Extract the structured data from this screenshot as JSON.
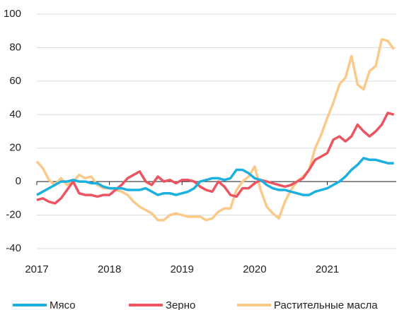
{
  "chart_data": {
    "type": "line",
    "x": [
      2017,
      2017.083,
      2017.167,
      2017.25,
      2017.333,
      2017.417,
      2017.5,
      2017.583,
      2017.667,
      2017.75,
      2017.833,
      2017.917,
      2018,
      2018.083,
      2018.167,
      2018.25,
      2018.333,
      2018.417,
      2018.5,
      2018.583,
      2018.667,
      2018.75,
      2018.833,
      2018.917,
      2019,
      2019.083,
      2019.167,
      2019.25,
      2019.333,
      2019.417,
      2019.5,
      2019.583,
      2019.667,
      2019.75,
      2019.833,
      2019.917,
      2020,
      2020.083,
      2020.167,
      2020.25,
      2020.333,
      2020.417,
      2020.5,
      2020.583,
      2020.667,
      2020.75,
      2020.833,
      2020.917,
      2021,
      2021.083,
      2021.167,
      2021.25,
      2021.333,
      2021.417,
      2021.5,
      2021.583,
      2021.667,
      2021.75,
      2021.833,
      2021.917
    ],
    "series": [
      {
        "name": "Мясо",
        "color": "#1cb0e0",
        "values": [
          -8,
          -6,
          -4,
          -2,
          0,
          0,
          1,
          0,
          0,
          -1,
          -1,
          -3,
          -4,
          -4,
          -4,
          -5,
          -5,
          -5,
          -4,
          -6,
          -8,
          -7,
          -7,
          -8,
          -7,
          -6,
          -4,
          0,
          1,
          2,
          2,
          1,
          2,
          7,
          7,
          5,
          2,
          1,
          -2,
          -4,
          -5,
          -5,
          -6,
          -7,
          -8,
          -8,
          -6,
          -5,
          -4,
          -2,
          0,
          3,
          7,
          10,
          14,
          13,
          13,
          12,
          11,
          11
        ]
      },
      {
        "name": "Зерно",
        "color": "#ec5462",
        "values": [
          -11,
          -10,
          -12,
          -13,
          -10,
          -5,
          0,
          -7,
          -8,
          -8,
          -9,
          -8,
          -8,
          -5,
          -2,
          2,
          4,
          6,
          0,
          -2,
          3,
          0,
          1,
          -1,
          1,
          1,
          0,
          -3,
          -5,
          -6,
          0,
          -3,
          -8,
          -9,
          -4,
          -4,
          -1,
          1,
          0,
          -1,
          -2,
          -3,
          -2,
          0,
          2,
          7,
          13,
          15,
          17,
          25,
          27,
          24,
          27,
          34,
          30,
          27,
          30,
          34,
          41,
          40
        ]
      },
      {
        "name": "Растительные масла",
        "color": "#fbc98a",
        "values": [
          12,
          8,
          1,
          -2,
          2,
          -2,
          0,
          4,
          2,
          3,
          -2,
          -4,
          -4,
          -5,
          -6,
          -8,
          -12,
          -15,
          -17,
          -19,
          -23,
          -23,
          -20,
          -19,
          -20,
          -21,
          -21,
          -21,
          -23,
          -22,
          -18,
          -16,
          -16,
          -5,
          0,
          3,
          9,
          -5,
          -15,
          -19,
          -22,
          -12,
          -5,
          0,
          3,
          7,
          20,
          28,
          38,
          47,
          58,
          62,
          75,
          58,
          55,
          66,
          69,
          85,
          84,
          79
        ]
      }
    ],
    "xlim": [
      2017,
      2021.95
    ],
    "xticks": [
      2017,
      2018,
      2019,
      2020,
      2021
    ],
    "ylim": [
      -40,
      100
    ],
    "yticks": [
      100,
      80,
      60,
      40,
      20,
      0,
      -20,
      -40
    ],
    "grid": true
  }
}
